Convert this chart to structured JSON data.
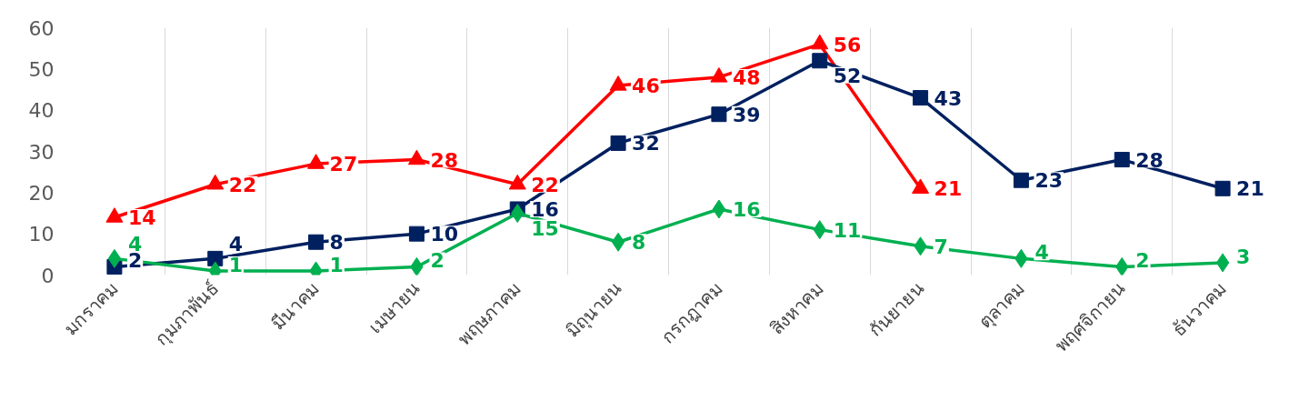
{
  "chart_data": {
    "type": "line",
    "categories": [
      "มกราคม",
      "กุมภาพันธ์",
      "มีนาคม",
      "เมษายน",
      "พฤษภาคม",
      "มิถุนายน",
      "กรกฎาคม",
      "สิงหาคม",
      "กันยายน",
      "ตุลาคม",
      "พฤศจิกายน",
      "ธันวาคม"
    ],
    "series": [
      {
        "color": "#ff0000",
        "marker": "triangle",
        "values": [
          14,
          22,
          27,
          28,
          22,
          46,
          48,
          56,
          21,
          null,
          null,
          null
        ]
      },
      {
        "color": "#002060",
        "marker": "square",
        "values": [
          2,
          4,
          8,
          10,
          16,
          32,
          39,
          52,
          43,
          23,
          28,
          21
        ]
      },
      {
        "color": "#00b050",
        "marker": "diamond",
        "values": [
          4,
          1,
          1,
          2,
          15,
          8,
          16,
          11,
          7,
          4,
          2,
          3
        ]
      }
    ],
    "ylim": [
      0,
      60
    ],
    "yticks": [
      0,
      10,
      20,
      30,
      40,
      50,
      60
    ],
    "grid": "x",
    "data_labels": true,
    "line_style": "solid"
  }
}
